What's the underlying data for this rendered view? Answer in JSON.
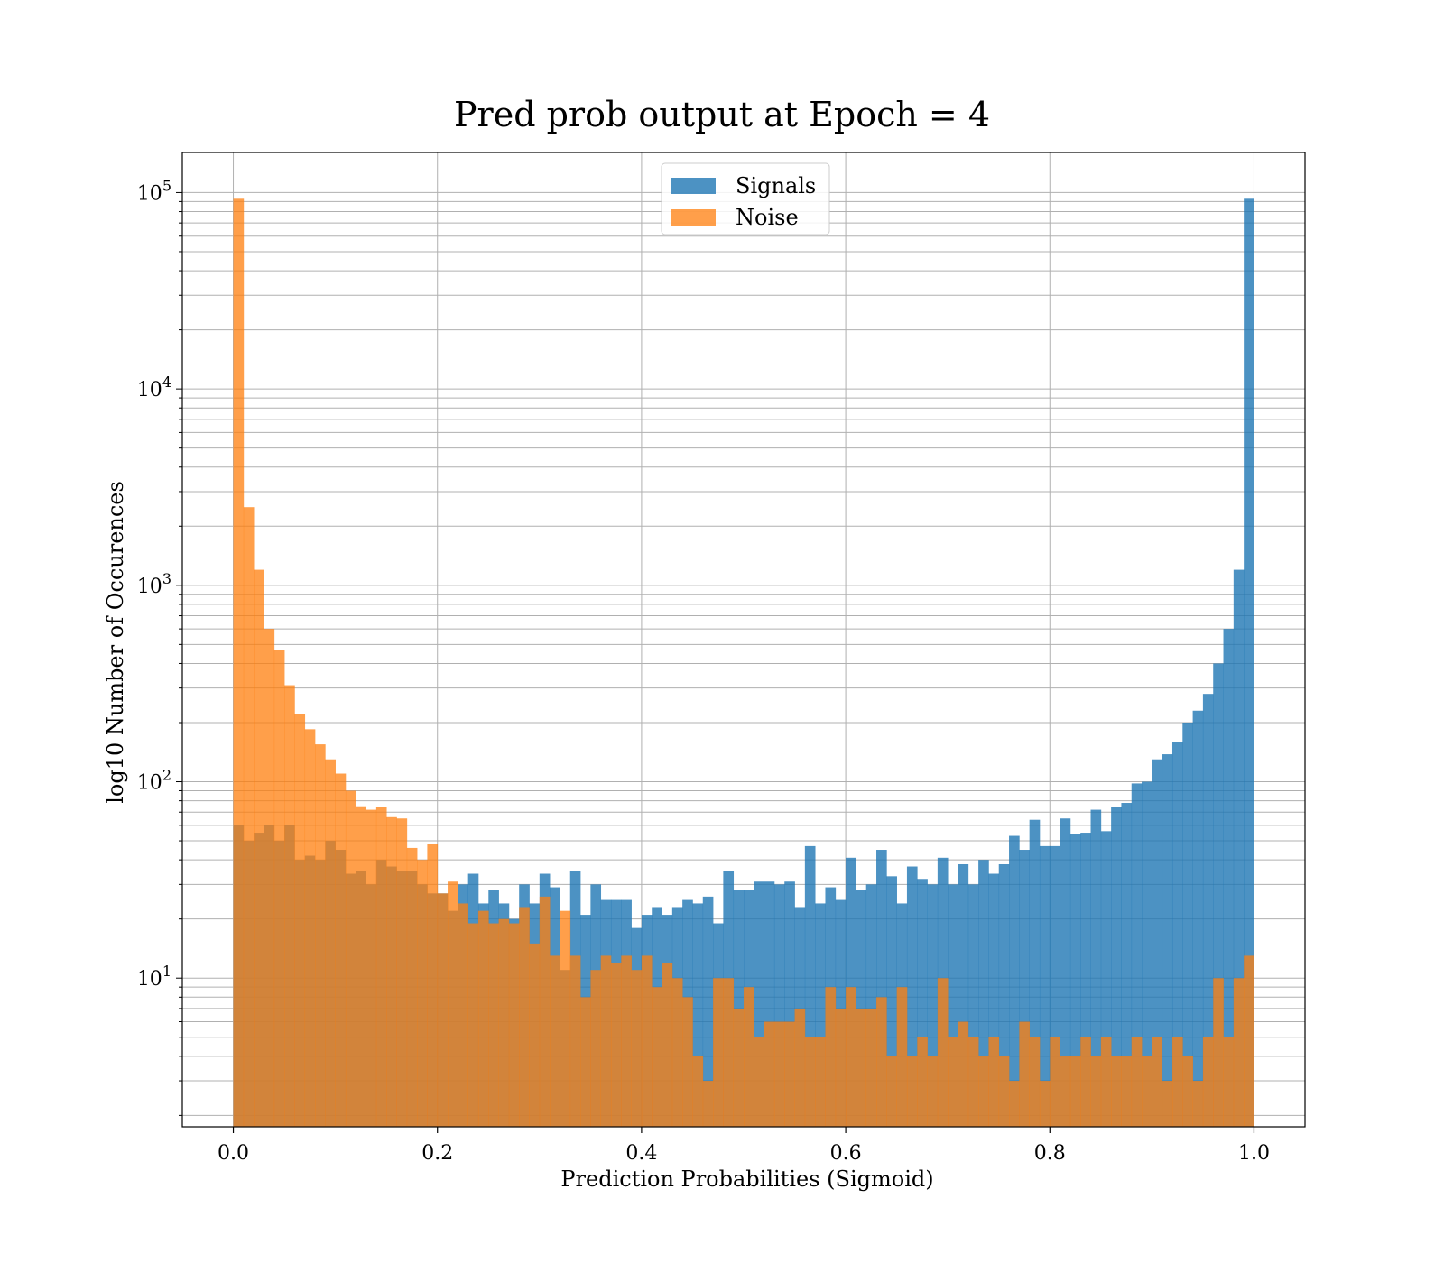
{
  "chart_data": {
    "type": "histogram",
    "title": "Pred prob output at Epoch = 4",
    "xlabel": "Prediction Probabilities (Sigmoid)",
    "ylabel": "log10 Number of Occurences",
    "xlim": [
      -0.05,
      1.05
    ],
    "ylim": [
      1.75,
      160000
    ],
    "yscale": "log",
    "grid": true,
    "legend_position": "top-center",
    "x_ticks": [
      0.0,
      0.2,
      0.4,
      0.6,
      0.8,
      1.0
    ],
    "x_tick_labels": [
      "0.0",
      "0.2",
      "0.4",
      "0.6",
      "0.8",
      "1.0"
    ],
    "y_ticks": [
      {
        "value": 10,
        "base": "10",
        "exp": "1"
      },
      {
        "value": 100,
        "base": "10",
        "exp": "2"
      },
      {
        "value": 1000,
        "base": "10",
        "exp": "3"
      },
      {
        "value": 10000,
        "base": "10",
        "exp": "4"
      },
      {
        "value": 100000,
        "base": "10",
        "exp": "5"
      }
    ],
    "bin_range": [
      0.0,
      1.0
    ],
    "bins": 100,
    "series": [
      {
        "name": "Signals",
        "color": "#1f77b4",
        "alpha": 0.8,
        "values": [
          60,
          50,
          55,
          60,
          50,
          60,
          40,
          42,
          40,
          50,
          45,
          34,
          35,
          30,
          40,
          37,
          35,
          35,
          30,
          27,
          27,
          22,
          30,
          34,
          24,
          28,
          24,
          20,
          30,
          24,
          34,
          29,
          11,
          35,
          21,
          30,
          25,
          25,
          25,
          18,
          21,
          23,
          21,
          23,
          25,
          24,
          26,
          19,
          35,
          28,
          28,
          31,
          31,
          30,
          31,
          23,
          47,
          24,
          29,
          25,
          41,
          28,
          30,
          45,
          33,
          24,
          37,
          32,
          30,
          41,
          30,
          38,
          30,
          40,
          34,
          38,
          53,
          45,
          64,
          47,
          47,
          65,
          54,
          55,
          72,
          56,
          74,
          78,
          98,
          100,
          130,
          138,
          160,
          200,
          230,
          280,
          400,
          600,
          1200,
          93000
        ]
      },
      {
        "name": "Noise",
        "color": "#ff7f0e",
        "alpha": 0.75,
        "values": [
          93000,
          2500,
          1200,
          600,
          470,
          310,
          220,
          185,
          155,
          130,
          110,
          90,
          75,
          72,
          74,
          66,
          65,
          46,
          40,
          48,
          27,
          31,
          24,
          19,
          22,
          19,
          20,
          19,
          23,
          15,
          26,
          13,
          22,
          13,
          8,
          11,
          13,
          12,
          13,
          11,
          13,
          9,
          12,
          10,
          8,
          4,
          3,
          10,
          10,
          7,
          9,
          5,
          6,
          6,
          6,
          7,
          5,
          5,
          9,
          7,
          9,
          7,
          7,
          8,
          4,
          9,
          4,
          5,
          4,
          10,
          5,
          6,
          5,
          4,
          5,
          4,
          3,
          6,
          5,
          3,
          5,
          4,
          4,
          5,
          4,
          5,
          4,
          4,
          5,
          4,
          5,
          3,
          5,
          4,
          3,
          5,
          10,
          5,
          10,
          13
        ]
      }
    ]
  }
}
